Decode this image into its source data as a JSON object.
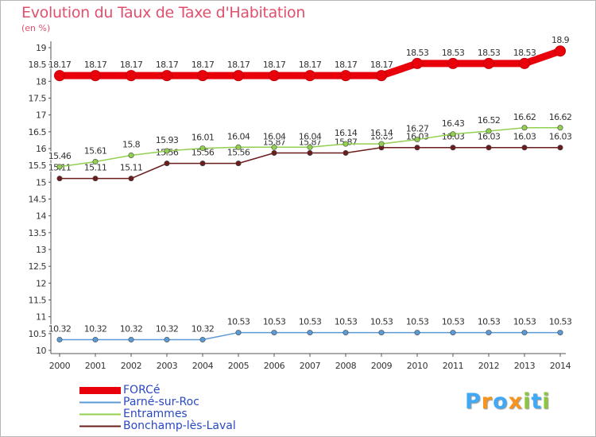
{
  "chart_data": {
    "type": "line",
    "title": "Evolution du Taux de Taxe d'Habitation",
    "ylabel": "(en %)",
    "xlabel": "",
    "x": [
      "2000",
      "2001",
      "2002",
      "2003",
      "2004",
      "2005",
      "2006",
      "2007",
      "2008",
      "2009",
      "2010",
      "2011",
      "2012",
      "2013",
      "2014"
    ],
    "ylim": [
      10,
      19
    ],
    "yticks": [
      "10",
      "10.5",
      "11",
      "11.5",
      "12",
      "12.5",
      "13",
      "13.5",
      "14",
      "14.5",
      "15",
      "15.5",
      "16",
      "16.5",
      "17",
      "17.5",
      "18",
      "18.5",
      "19"
    ],
    "grid": false,
    "legend_position": "bottom-left",
    "series": [
      {
        "name": "FORCé",
        "color": "#e8000b",
        "values": [
          18.17,
          18.17,
          18.17,
          18.17,
          18.17,
          18.17,
          18.17,
          18.17,
          18.17,
          18.17,
          18.53,
          18.53,
          18.53,
          18.53,
          18.9
        ],
        "labels": [
          "18.17",
          "18.17",
          "18.17",
          "18.17",
          "18.17",
          "18.17",
          "18.17",
          "18.17",
          "18.17",
          "18.17",
          "18.53",
          "18.53",
          "18.53",
          "18.53",
          "18.9"
        ]
      },
      {
        "name": "Parné-sur-Roc",
        "color": "#5b9bd5",
        "values": [
          10.32,
          10.32,
          10.32,
          10.32,
          10.32,
          10.53,
          10.53,
          10.53,
          10.53,
          10.53,
          10.53,
          10.53,
          10.53,
          10.53,
          10.53
        ],
        "labels": [
          "10.32",
          "10.32",
          "10.32",
          "10.32",
          "10.32",
          "10.53",
          "10.53",
          "10.53",
          "10.53",
          "10.53",
          "10.53",
          "10.53",
          "10.53",
          "10.53",
          "10.53"
        ]
      },
      {
        "name": "Entrammes",
        "color": "#92d050",
        "values": [
          15.46,
          15.61,
          15.8,
          15.93,
          16.01,
          16.04,
          16.04,
          16.04,
          16.14,
          16.14,
          16.27,
          16.43,
          16.52,
          16.62,
          16.62
        ],
        "labels": [
          "15.46",
          "15.61",
          "15.8",
          "15.93",
          "16.01",
          "16.04",
          "16.04",
          "16.04",
          "16.14",
          "16.14",
          "16.27",
          "16.43",
          "16.52",
          "16.62",
          "16.62"
        ]
      },
      {
        "name": "Bonchamp-lès-Laval",
        "color": "#6b1c1c",
        "values": [
          15.11,
          15.11,
          15.11,
          15.56,
          15.56,
          15.56,
          15.87,
          15.87,
          15.87,
          16.03,
          16.03,
          16.03,
          16.03,
          16.03,
          16.03
        ],
        "labels": [
          "15.11",
          "15.11",
          "15.11",
          "15.56",
          "15.56",
          "15.56",
          "15.87",
          "15.87",
          "15.87",
          "16.03",
          "16.03",
          "16.03",
          "16.03",
          "16.03",
          "16.03"
        ]
      }
    ]
  },
  "logo": {
    "letters": [
      "P",
      "r",
      "o",
      "x",
      "i",
      "t",
      "i"
    ],
    "colors": [
      "#3fa9f5",
      "#f7931e",
      "#3fa9f5",
      "#f7931e",
      "#8cc63f",
      "#3fa9f5",
      "#8cc63f"
    ]
  }
}
